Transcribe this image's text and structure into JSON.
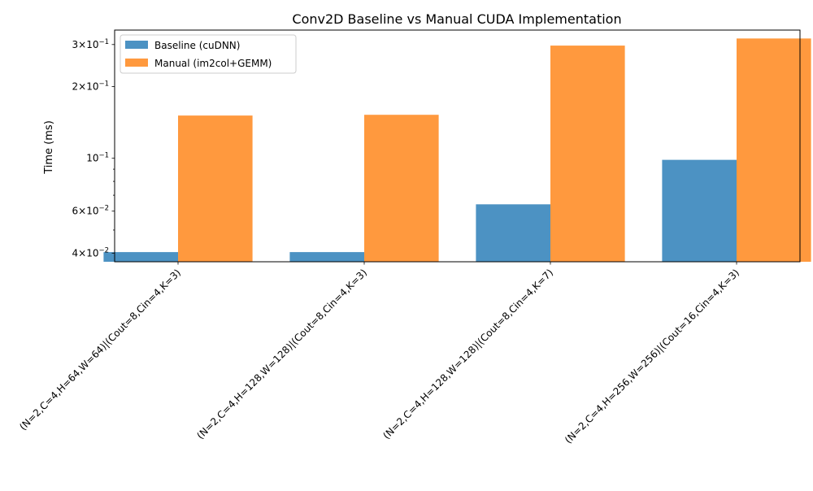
{
  "chart_data": {
    "type": "bar",
    "title": "Conv2D Baseline vs Manual CUDA Implementation",
    "xlabel": "",
    "ylabel": "Time (ms)",
    "yscale": "log",
    "ylim": [
      0.0368,
      0.345
    ],
    "yticks": [
      {
        "value": 0.04,
        "mantissa": "4",
        "base": "10",
        "exp": "−2"
      },
      {
        "value": 0.06,
        "mantissa": "6",
        "base": "10",
        "exp": "−2"
      },
      {
        "value": 0.1,
        "mantissa": "",
        "base": "10",
        "exp": "−1"
      },
      {
        "value": 0.2,
        "mantissa": "2",
        "base": "10",
        "exp": "−1"
      },
      {
        "value": 0.3,
        "mantissa": "3",
        "base": "10",
        "exp": "−1"
      }
    ],
    "minor_yticks": [
      0.05,
      0.07,
      0.08,
      0.09
    ],
    "categories": [
      "(N=2,C=4,H=64,W=64)|(Cout=8,Cin=4,K=3)",
      "(N=2,C=4,H=128,W=128)|(Cout=8,Cin=4,K=3)",
      "(N=2,C=4,H=128,W=128)|(Cout=8,Cin=4,K=7)",
      "(N=2,C=4,H=256,W=256)|(Cout=16,Cin=4,K=3)"
    ],
    "series": [
      {
        "name": "Baseline (cuDNN)",
        "color": "#1f77b4",
        "values": [
          0.0404,
          0.0404,
          0.0641,
          0.0985
        ]
      },
      {
        "name": "Manual (im2col+GEMM)",
        "color": "#ff7f0e",
        "values": [
          0.1511,
          0.1522,
          0.297,
          0.3181
        ]
      }
    ],
    "legend_position": "top-left",
    "grid": false
  }
}
